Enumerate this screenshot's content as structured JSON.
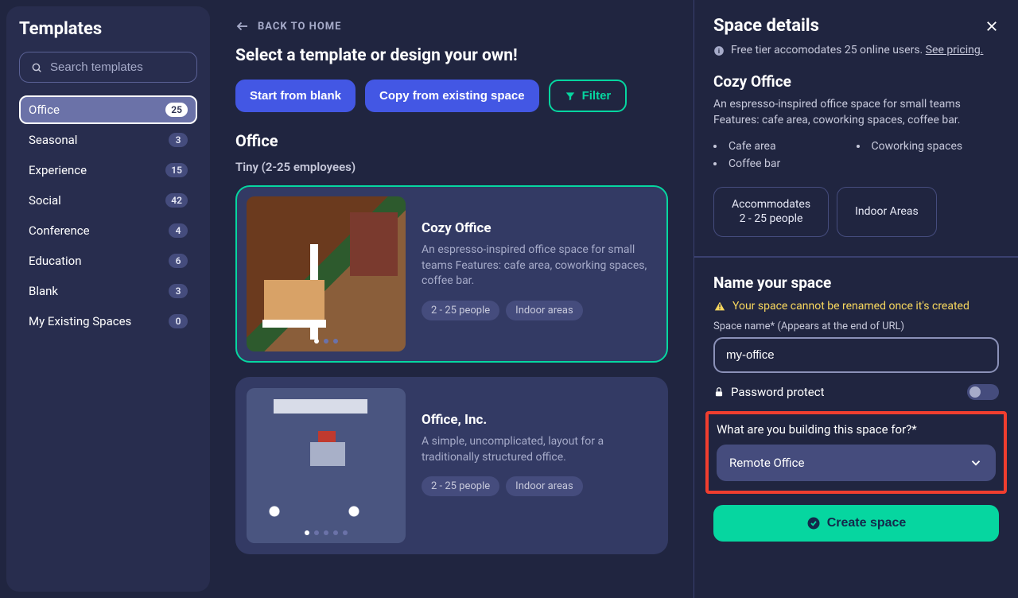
{
  "left": {
    "title": "Templates",
    "search_placeholder": "Search templates",
    "categories": [
      {
        "label": "Office",
        "count": "25",
        "active": true
      },
      {
        "label": "Seasonal",
        "count": "3"
      },
      {
        "label": "Experience",
        "count": "15"
      },
      {
        "label": "Social",
        "count": "42"
      },
      {
        "label": "Conference",
        "count": "4"
      },
      {
        "label": "Education",
        "count": "6"
      },
      {
        "label": "Blank",
        "count": "3"
      },
      {
        "label": "My Existing Spaces",
        "count": "0"
      }
    ]
  },
  "middle": {
    "back": "BACK TO HOME",
    "heading": "Select a template or design your own!",
    "buttons": {
      "blank": "Start from blank",
      "copy": "Copy from existing space",
      "filter": "Filter"
    },
    "section": "Office",
    "subsection": "Tiny (2-25 employees)",
    "cards": [
      {
        "title": "Cozy Office",
        "desc": "An espresso-inspired office space for small teams Features: cafe area, coworking spaces, coffee bar.",
        "tags": [
          "2 - 25 people",
          "Indoor areas"
        ],
        "dots": 3,
        "selected": true
      },
      {
        "title": "Office, Inc.",
        "desc": "A simple, uncomplicated, layout for a traditionally structured office.",
        "tags": [
          "2 - 25 people",
          "Indoor areas"
        ],
        "dots": 5,
        "selected": false
      }
    ]
  },
  "right": {
    "details_title": "Space details",
    "info_prefix": "Free tier accomodates 25 online users. ",
    "info_link": "See pricing.",
    "template_name": "Cozy Office",
    "template_desc": "An espresso-inspired office space for small teams Features: cafe area, coworking spaces, coffee bar.",
    "features": [
      "Cafe area",
      "Coworking spaces",
      "Coffee bar"
    ],
    "pills": {
      "accommodates_l1": "Accommodates",
      "accommodates_l2": "2 - 25 people",
      "indoor": "Indoor Areas"
    },
    "form_title": "Name your space",
    "warn": "Your space cannot be renamed once it's created",
    "name_label": "Space name* (Appears at the end of URL)",
    "name_value": "my-office",
    "password_label": "Password protect",
    "question": "What are you building this space for?*",
    "select_value": "Remote Office",
    "create": "Create space"
  }
}
